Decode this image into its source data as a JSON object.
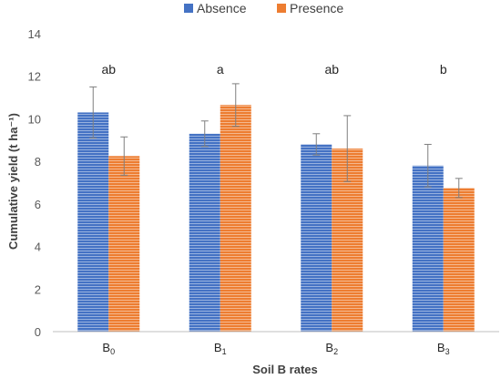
{
  "chart_data": {
    "type": "bar",
    "title": "",
    "xlabel": "Soil B rates",
    "ylabel": "Cumulative yield (t ha⁻¹)",
    "ylim": [
      0,
      14
    ],
    "yticks": [
      0,
      2,
      4,
      6,
      8,
      10,
      12,
      14
    ],
    "grid": false,
    "legend_position": "top",
    "categories": [
      {
        "base": "B",
        "sub": "0"
      },
      {
        "base": "B",
        "sub": "1"
      },
      {
        "base": "B",
        "sub": "2"
      },
      {
        "base": "B",
        "sub": "3"
      }
    ],
    "significance_letters": [
      "ab",
      "a",
      "ab",
      "b"
    ],
    "series": [
      {
        "name": "Absence",
        "color": "#4472C4",
        "pattern": "horizontal-stripes",
        "values": [
          10.3,
          9.3,
          8.8,
          7.8
        ],
        "errors": [
          1.2,
          0.6,
          0.5,
          1.0
        ]
      },
      {
        "name": "Presence",
        "color": "#ED7D31",
        "pattern": "horizontal-stripes",
        "values": [
          8.25,
          10.65,
          8.6,
          6.75
        ],
        "errors": [
          0.9,
          1.0,
          1.55,
          0.45
        ]
      }
    ]
  }
}
